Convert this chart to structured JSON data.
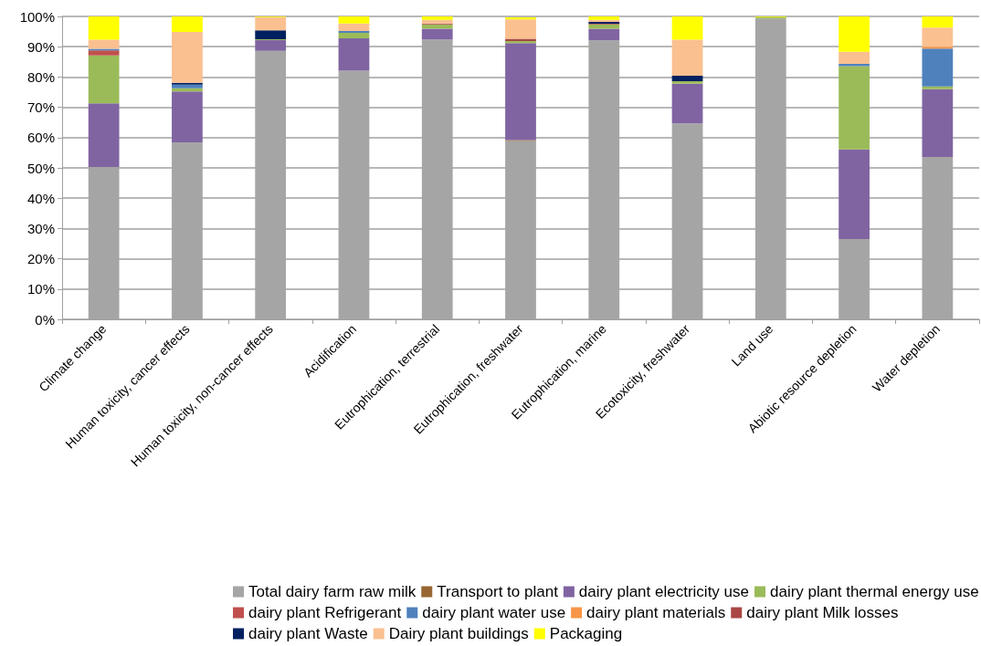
{
  "chart_data": {
    "type": "bar",
    "stacked": true,
    "grid": "y",
    "legend": "bottom",
    "categories": [
      "Climate change",
      "Human toxicity, cancer effects",
      "Human toxicity, non-cancer effects",
      "Acidification",
      "Eutrophication, terrestrial",
      "Eutrophication, freshwater",
      "Eutrophication, marine",
      "Ecotoxicity, freshwater",
      "Land use",
      "Abiotic resource depletion",
      "Water depletion"
    ],
    "ylim": [
      0,
      100
    ],
    "yticks": [
      {
        "value": 0,
        "label": "0%"
      },
      {
        "value": 10,
        "label": "10%"
      },
      {
        "value": 20,
        "label": "20%"
      },
      {
        "value": 30,
        "label": "30%"
      },
      {
        "value": 40,
        "label": "40%"
      },
      {
        "value": 50,
        "label": "50%"
      },
      {
        "value": 60,
        "label": "60%"
      },
      {
        "value": 70,
        "label": "70%"
      },
      {
        "value": 80,
        "label": "80%"
      },
      {
        "value": 90,
        "label": "90%"
      },
      {
        "value": 100,
        "label": "100%"
      }
    ],
    "series": [
      {
        "name": "Total dairy farm raw milk",
        "color": "#a5a5a5",
        "values": [
          50.3,
          58.4,
          88.6,
          82.1,
          92.4,
          58.9,
          92.1,
          64.7,
          99.3,
          26.5,
          53.6
        ]
      },
      {
        "name": "Transport to plant",
        "color": "#996633",
        "values": [
          0,
          0,
          0,
          0,
          0,
          0.3,
          0,
          0,
          0,
          0,
          0
        ]
      },
      {
        "name": "dairy plant electricity use",
        "color": "#8064a2",
        "values": [
          21.0,
          16.8,
          3.6,
          10.7,
          3.5,
          32.0,
          3.8,
          13.1,
          0,
          29.6,
          22.4
        ]
      },
      {
        "name": "dairy plant thermal energy use",
        "color": "#9bbb59",
        "values": [
          15.8,
          1.1,
          0.3,
          1.8,
          1.5,
          0.7,
          1.5,
          0.8,
          0.5,
          27.5,
          0.9
        ]
      },
      {
        "name": "dairy plant Refrigerant",
        "color": "#c0504d",
        "values": [
          1.7,
          0,
          0,
          0,
          0,
          0,
          0,
          0,
          0,
          0,
          0
        ]
      },
      {
        "name": "dairy plant water use",
        "color": "#4f81bd",
        "values": [
          0.5,
          1.2,
          0,
          0.6,
          0,
          0,
          0,
          0,
          0,
          0.7,
          12.5
        ]
      },
      {
        "name": "dairy plant materials",
        "color": "#f79646",
        "values": [
          0,
          0,
          0,
          0,
          0,
          0,
          0,
          0,
          0,
          0,
          0.6
        ]
      },
      {
        "name": "dairy plant Milk losses",
        "color": "#aa4644",
        "values": [
          0,
          0,
          0,
          0,
          0.3,
          0.7,
          0.2,
          0,
          0,
          0,
          0
        ]
      },
      {
        "name": "dairy plant Waste",
        "color": "#002060",
        "values": [
          0,
          0.6,
          2.9,
          0,
          0,
          0,
          0.6,
          1.8,
          0,
          0,
          0
        ]
      },
      {
        "name": "Dairy plant buildings",
        "color": "#fac090",
        "values": [
          3.0,
          16.8,
          4.4,
          2.5,
          1.2,
          6.4,
          0.7,
          11.9,
          0,
          4.0,
          6.3
        ]
      },
      {
        "name": "Packaging",
        "color": "#ffff00",
        "values": [
          7.7,
          5.1,
          0.2,
          2.3,
          1.1,
          0.7,
          1.3,
          7.7,
          0.2,
          11.7,
          3.7
        ]
      }
    ]
  }
}
